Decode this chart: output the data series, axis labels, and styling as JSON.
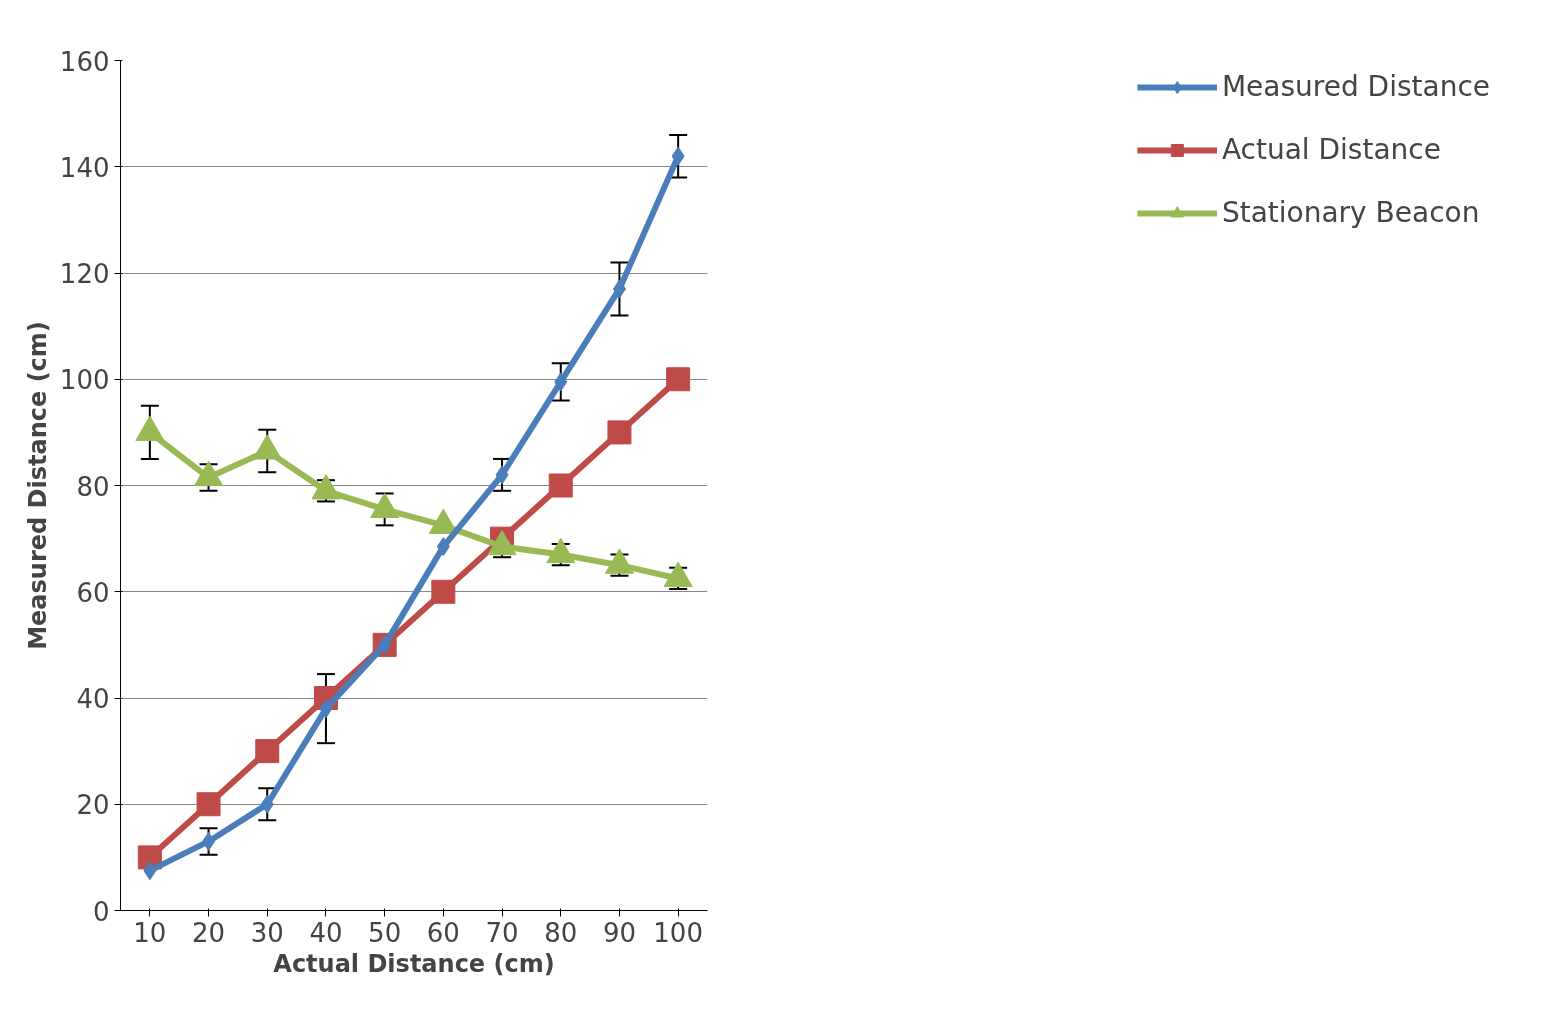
{
  "chart_data": {
    "type": "line",
    "xlabel": "Actual Distance (cm)",
    "ylabel": "Measured Distance (cm)",
    "categories": [
      "10",
      "20",
      "30",
      "40",
      "50",
      "60",
      "70",
      "80",
      "90",
      "100"
    ],
    "series": [
      {
        "name": "Measured Distance",
        "color": "#4a7ebb",
        "marker": "diamond",
        "values": [
          7.5,
          13,
          20,
          38,
          50,
          68.5,
          82,
          99.5,
          117,
          142
        ],
        "errors": [
          null,
          2.5,
          3,
          6.5,
          null,
          null,
          3,
          3.5,
          5,
          4
        ]
      },
      {
        "name": "Actual Distance",
        "color": "#be4b48",
        "marker": "square",
        "values": [
          10,
          20,
          30,
          40,
          50,
          60,
          70,
          80,
          90,
          100
        ]
      },
      {
        "name": "Stationary Beacon",
        "color": "#98b954",
        "marker": "triangle",
        "values": [
          90,
          81.5,
          86.5,
          79,
          75.5,
          72.5,
          68.5,
          67,
          65,
          62.5
        ],
        "errors": [
          5,
          2.5,
          4,
          2,
          3,
          null,
          2,
          2,
          2,
          2
        ]
      }
    ],
    "ylim": [
      0,
      160
    ],
    "yticks": [
      0,
      20,
      40,
      60,
      80,
      100,
      120,
      140,
      160
    ],
    "grid": "y",
    "legend": "right"
  }
}
